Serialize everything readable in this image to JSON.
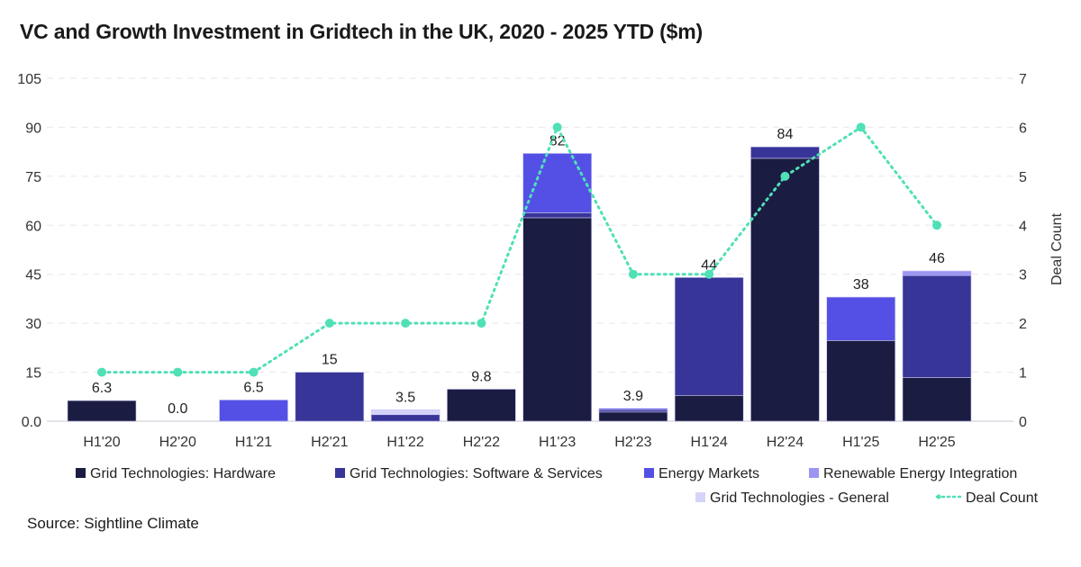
{
  "chart_data": {
    "type": "bar",
    "stacked": true,
    "title": "VC and Growth Investment in Gridtech in the UK, 2020 - 2025 YTD ($m)",
    "source": "Source: Sightline Climate",
    "categories": [
      "H1'20",
      "H2'20",
      "H1'21",
      "H2'21",
      "H1'22",
      "H2'22",
      "H1'23",
      "H2'23",
      "H1'24",
      "H2'24",
      "H1'25",
      "H2'25"
    ],
    "series": [
      {
        "name": "Grid Technologies: Hardware",
        "color": "#1b1c42",
        "values": [
          6.3,
          0,
          0,
          0,
          0,
          9.8,
          62.3,
          2.8,
          7.9,
          80.5,
          24.7,
          13.4
        ]
      },
      {
        "name": "Grid Technologies: Software & Services",
        "color": "#373597",
        "values": [
          0,
          0,
          0,
          15,
          2.0,
          0,
          1.5,
          0.7,
          36.1,
          3.5,
          0,
          31.2
        ]
      },
      {
        "name": "Energy Markets",
        "color": "#5450e6",
        "values": [
          0,
          0,
          6.5,
          0,
          0,
          0,
          18.2,
          0.4,
          0,
          0,
          13.3,
          0
        ]
      },
      {
        "name": "Renewable Energy Integration",
        "color": "#9c96f2",
        "values": [
          0,
          0,
          0,
          0,
          0,
          0,
          0,
          0,
          0,
          0,
          0,
          1.4
        ]
      },
      {
        "name": "Grid Technologies - General",
        "color": "#d6d3f8",
        "values": [
          0,
          0,
          0,
          0,
          1.5,
          0,
          0,
          0,
          0,
          0,
          0,
          0
        ]
      }
    ],
    "totals_labels": [
      "6.3",
      "0.0",
      "6.5",
      "15",
      "3.5",
      "9.8",
      "82",
      "3.9",
      "44",
      "84",
      "38",
      "46"
    ],
    "line": {
      "name": "Deal Count",
      "color": "#4fe0b6",
      "axis": "right",
      "values": [
        1,
        1,
        1,
        2,
        2,
        2,
        6,
        3,
        3,
        5,
        6,
        4
      ]
    },
    "y_left": {
      "range": [
        0,
        105
      ],
      "ticks": [
        "0.0",
        "15",
        "30",
        "45",
        "60",
        "75",
        "90",
        "105"
      ],
      "label": ""
    },
    "y_right": {
      "range": [
        0,
        7
      ],
      "ticks": [
        "0",
        "1",
        "2",
        "3",
        "4",
        "5",
        "6",
        "7"
      ],
      "label": "Deal Count"
    },
    "grid": true,
    "legend": "bottom"
  }
}
